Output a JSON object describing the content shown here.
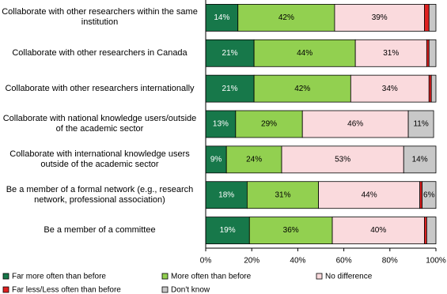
{
  "chart_data": {
    "type": "stacked-bar-horizontal",
    "categories": [
      "Collaborate with other researchers within the same institution",
      "Collaborate with other researchers in Canada",
      "Collaborate with other researchers internationally",
      "Collaborate with national knowledge users/outside of the academic sector",
      "Collaborate with international knowledge users outside of the academic sector",
      "Be a member of a formal network (e.g., research network, professional association)",
      "Be a member of a committee"
    ],
    "series": [
      {
        "name": "Far more often than before",
        "color": "#17784a",
        "values": [
          14,
          21,
          21,
          13,
          9,
          18,
          19
        ],
        "value_labels": [
          "14%",
          "21%",
          "21%",
          "13%",
          "9%",
          "18%",
          "19%"
        ]
      },
      {
        "name": "More often than before",
        "color": "#92d050",
        "values": [
          42,
          44,
          42,
          29,
          24,
          31,
          36
        ],
        "value_labels": [
          "42%",
          "44%",
          "42%",
          "29%",
          "24%",
          "31%",
          "36%"
        ]
      },
      {
        "name": "No difference",
        "color": "#fadadd",
        "values": [
          39,
          31,
          34,
          46,
          53,
          44,
          40
        ],
        "value_labels": [
          "39%",
          "31%",
          "34%",
          "46%",
          "53%",
          "44%",
          "40%"
        ]
      },
      {
        "name": "Far less/Less often than before",
        "color": "#e02020",
        "values": [
          2,
          1,
          1,
          0,
          0,
          1,
          1
        ]
      },
      {
        "name": "Don't know",
        "color": "#c8c8c8",
        "values": [
          3,
          3,
          2,
          11,
          14,
          6,
          4
        ],
        "value_labels": [
          null,
          null,
          null,
          "11%",
          "14%",
          "6%",
          null
        ]
      }
    ],
    "xlim": [
      0,
      100
    ],
    "xticks": [
      {
        "value": 0,
        "label": "0%"
      },
      {
        "value": 20,
        "label": "20%"
      },
      {
        "value": 40,
        "label": "40%"
      },
      {
        "value": 60,
        "label": "60%"
      },
      {
        "value": 80,
        "label": "80%"
      },
      {
        "value": 100,
        "label": "100%"
      }
    ],
    "grid": false
  }
}
